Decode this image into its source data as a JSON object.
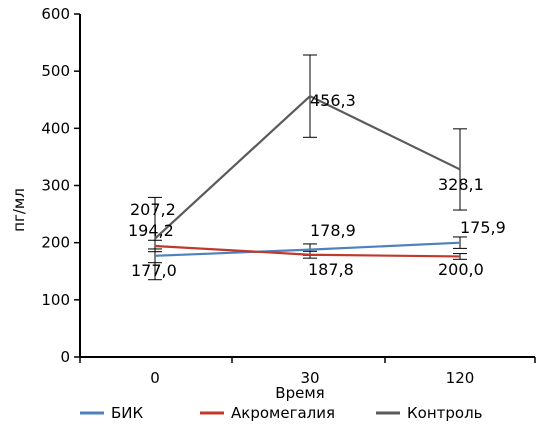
{
  "chart_data": {
    "type": "line",
    "title": "",
    "xlabel": "Время",
    "ylabel": "пг/мл",
    "categories": [
      "0",
      "30",
      "120"
    ],
    "ylim": [
      0,
      600
    ],
    "yticks": [
      "0",
      "100",
      "200",
      "300",
      "400",
      "500",
      "600"
    ],
    "grid": false,
    "legend_position": "bottom",
    "series": [
      {
        "name": "БИК",
        "color": "#4f81bd",
        "values": [
          177.0,
          187.8,
          200.0
        ],
        "labels": [
          "177,0",
          "187,8",
          "200,0"
        ],
        "error": [
          12,
          10,
          10
        ]
      },
      {
        "name": "Акромегалия",
        "color": "#c0392b",
        "values": [
          194.2,
          178.9,
          175.9
        ],
        "labels": [
          "194,2",
          "178,9",
          "175,9"
        ],
        "error": [
          10,
          6,
          5
        ]
      },
      {
        "name": "Контроль",
        "color": "#5a5a5a",
        "values": [
          207.2,
          456.3,
          328.1
        ],
        "labels": [
          "207,2",
          "456,3",
          "328,1"
        ],
        "error": [
          72,
          72,
          71
        ]
      }
    ]
  }
}
